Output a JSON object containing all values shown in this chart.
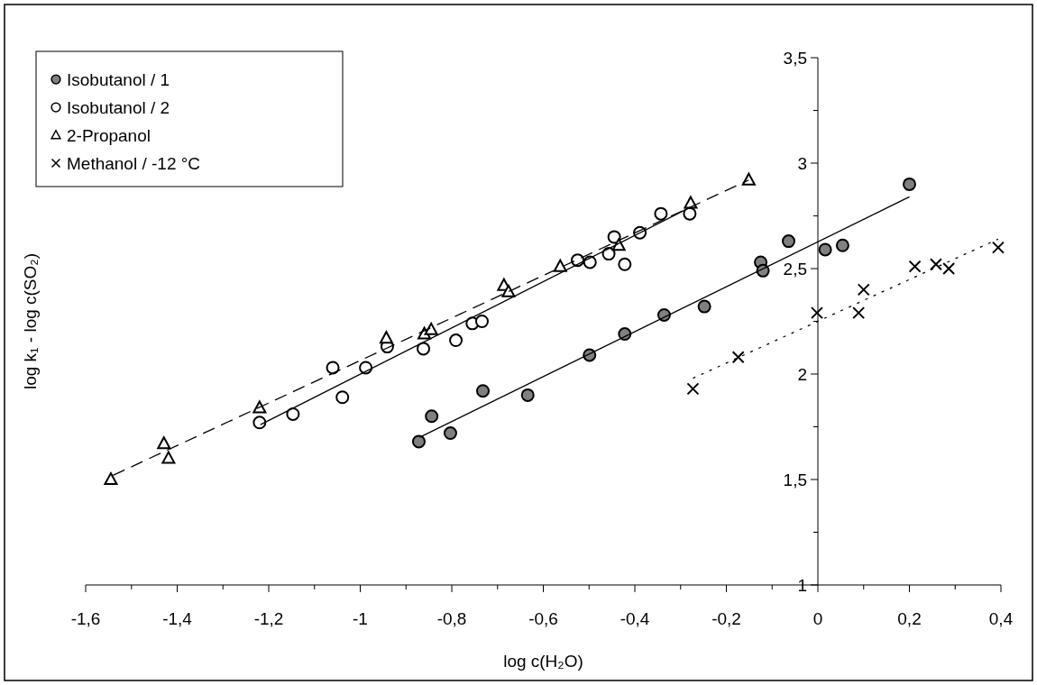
{
  "chart_data": {
    "type": "scatter",
    "xlabel": "log c(H₂O)",
    "ylabel": "log k₁ - log c(SO₂)",
    "xlim": [
      -1.6,
      0.4
    ],
    "ylim": [
      1,
      3.5
    ],
    "xticks": [
      {
        "value": -1.6,
        "label": "-1,6"
      },
      {
        "value": -1.5,
        "label": null
      },
      {
        "value": -1.4,
        "label": "-1,4"
      },
      {
        "value": -1.3,
        "label": null
      },
      {
        "value": -1.2,
        "label": "-1,2"
      },
      {
        "value": -1.1,
        "label": null
      },
      {
        "value": -1,
        "label": "-1"
      },
      {
        "value": -0.9,
        "label": null
      },
      {
        "value": -0.8,
        "label": "-0,8"
      },
      {
        "value": -0.7,
        "label": null
      },
      {
        "value": -0.6,
        "label": "-0,6"
      },
      {
        "value": -0.5,
        "label": null
      },
      {
        "value": -0.4,
        "label": "-0,4"
      },
      {
        "value": -0.3,
        "label": null
      },
      {
        "value": -0.2,
        "label": "-0,2"
      },
      {
        "value": -0.1,
        "label": null
      },
      0,
      {
        "value": 0.1,
        "label": null
      },
      {
        "value": 0.2,
        "label": "0,2"
      },
      {
        "value": 0.3,
        "label": null
      },
      {
        "value": 0.4,
        "label": "0,4"
      }
    ],
    "yticks": [
      1,
      {
        "value": 1.25,
        "label": null
      },
      {
        "value": 1.5,
        "label": "1,5"
      },
      {
        "value": 1.75,
        "label": null
      },
      2,
      {
        "value": 2.25,
        "label": null
      },
      {
        "value": 2.5,
        "label": "2,5"
      },
      {
        "value": 2.75,
        "label": null
      },
      3,
      {
        "value": 3.25,
        "label": null
      },
      {
        "value": 3.5,
        "label": "3,5"
      }
    ],
    "legend": "top left",
    "series": [
      {
        "name": "Isobutanol / 1",
        "marker": "circle",
        "color": "#808080",
        "x": [
          -0.872,
          -0.844,
          -0.803,
          -0.732,
          -0.634,
          -0.499,
          -0.422,
          -0.336,
          -0.248,
          -0.125,
          -0.12,
          -0.064,
          0.016,
          0.054,
          0.2
        ],
        "values": [
          1.68,
          1.8,
          1.72,
          1.92,
          1.9,
          2.09,
          2.19,
          2.28,
          2.32,
          2.53,
          2.49,
          2.63,
          2.59,
          2.61,
          2.9
        ]
      },
      {
        "name": "Isobutanol / 2",
        "marker": "circle",
        "color": "#ffffff",
        "x": [
          -1.22,
          -1.147,
          -1.039,
          -1.06,
          -0.988,
          -0.941,
          -0.862,
          -0.791,
          -0.755,
          -0.734,
          -0.525,
          -0.498,
          -0.457,
          -0.445,
          -0.422,
          -0.389,
          -0.343,
          -0.28
        ],
        "values": [
          1.77,
          1.81,
          1.89,
          2.03,
          2.03,
          2.13,
          2.12,
          2.16,
          2.24,
          2.25,
          2.54,
          2.53,
          2.57,
          2.65,
          2.52,
          2.67,
          2.76,
          2.76
        ]
      },
      {
        "name": "2-Propanol",
        "marker": "triangle",
        "color": "#000000",
        "x": [
          -1.545,
          -1.429,
          -1.419,
          -1.22,
          -0.943,
          -0.86,
          -0.845,
          -0.686,
          -0.676,
          -0.563,
          -0.435,
          -0.278,
          -0.151
        ],
        "values": [
          1.5,
          1.67,
          1.6,
          1.84,
          2.17,
          2.19,
          2.21,
          2.42,
          2.39,
          2.51,
          2.61,
          2.81,
          2.92
        ]
      },
      {
        "name": "Methanol / -12 °C",
        "marker": "cross",
        "color": "#000000",
        "x": [
          -0.273,
          -0.174,
          -0.002,
          0.089,
          0.1,
          0.212,
          0.258,
          0.286,
          0.394
        ],
        "values": [
          1.93,
          2.08,
          2.29,
          2.29,
          2.4,
          2.51,
          2.52,
          2.5,
          2.6
        ]
      },
      {
        "type": "line",
        "marker": "none",
        "line_style": "solid",
        "color": "#000000",
        "x": [
          -0.87,
          0.2
        ],
        "values": [
          1.7,
          2.84
        ]
      },
      {
        "type": "line",
        "marker": "none",
        "line_style": "solid",
        "color": "#000000",
        "x": [
          -1.218,
          -0.279
        ],
        "values": [
          1.76,
          2.79
        ]
      },
      {
        "type": "line",
        "marker": "none",
        "line_style": "dashed",
        "color": "#000000",
        "x": [
          -1.54,
          -0.151
        ],
        "values": [
          1.52,
          2.92
        ]
      },
      {
        "type": "line",
        "marker": "none",
        "line_style": "dotted",
        "color": "#000000",
        "x": [
          -0.273,
          0.394
        ],
        "values": [
          1.98,
          2.64
        ]
      }
    ]
  }
}
